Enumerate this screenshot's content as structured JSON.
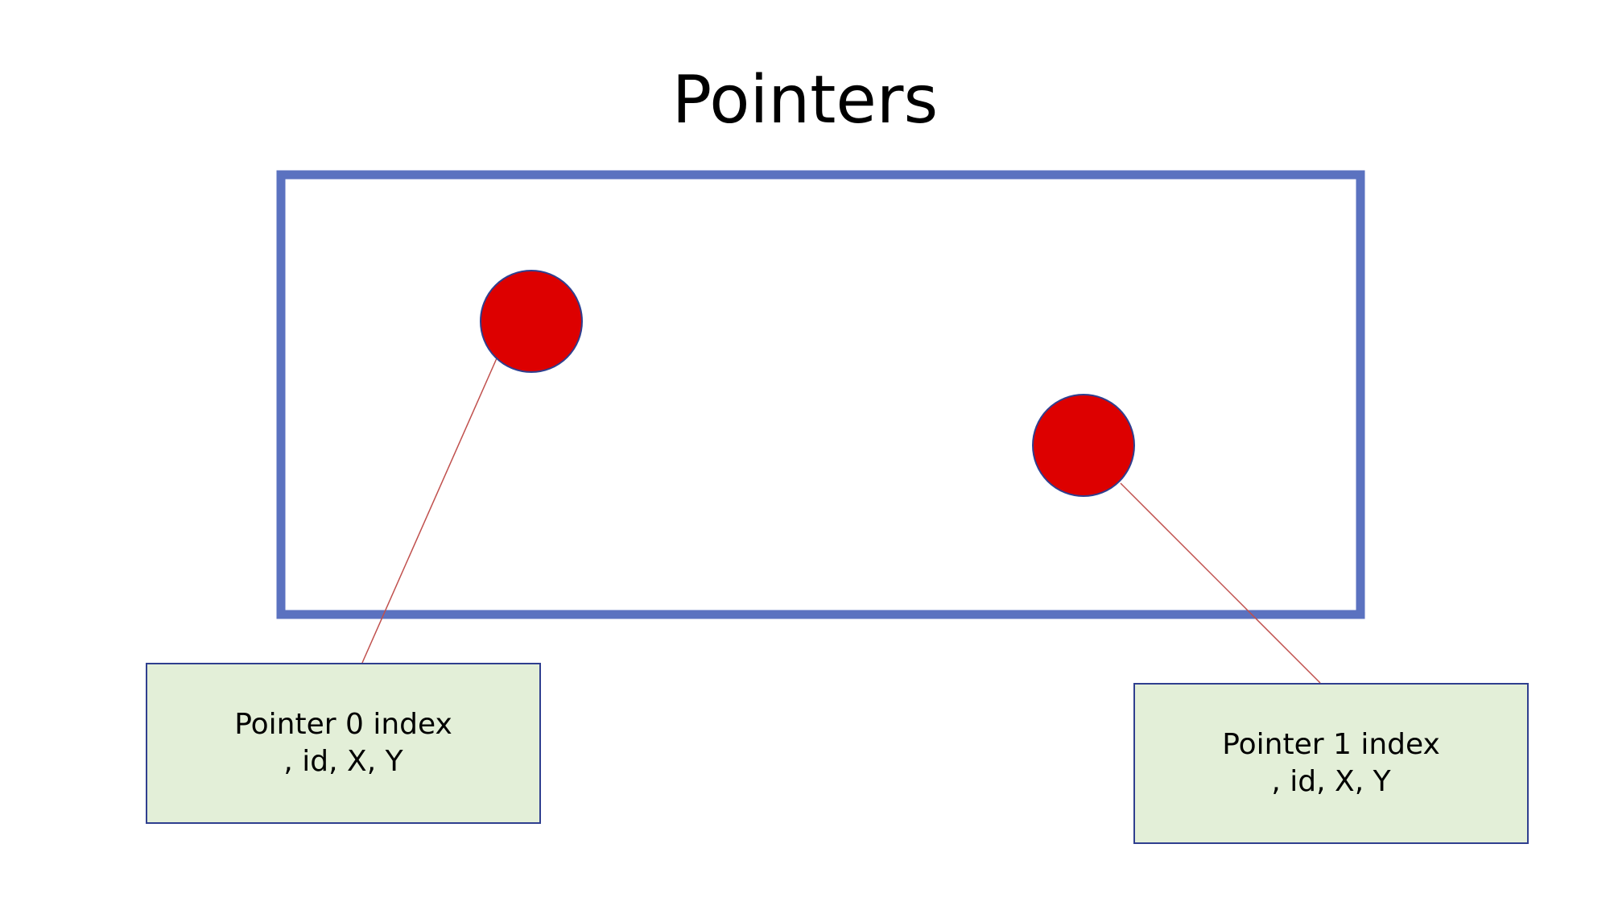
{
  "title": "Pointers",
  "colors": {
    "frame_border": "#5b72c0",
    "pointer_fill": "#dd0000",
    "pointer_stroke": "#2f3f8f",
    "leader_line": "#c0504d",
    "label_fill": "#e3efd8",
    "label_border": "#2f3f8f"
  },
  "pointers": [
    {
      "id": "pointer-0",
      "line1": "Pointer 0 index",
      "line2": ", id, X, Y"
    },
    {
      "id": "pointer-1",
      "line1": "Pointer 1 index",
      "line2": ", id, X, Y"
    }
  ]
}
